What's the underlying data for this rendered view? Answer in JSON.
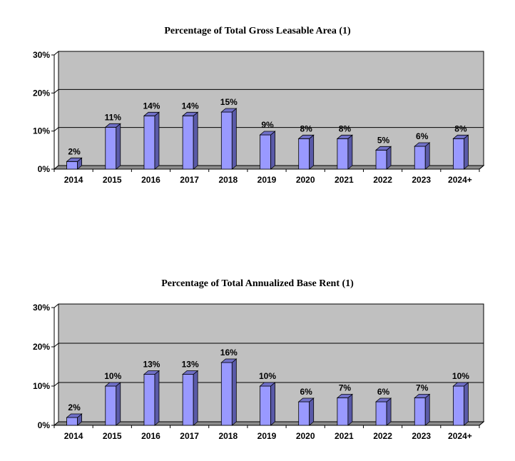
{
  "chart_data": [
    {
      "type": "bar",
      "title": "Percentage of Total Gross Leasable Area (1)",
      "categories": [
        "2014",
        "2015",
        "2016",
        "2017",
        "2018",
        "2019",
        "2020",
        "2021",
        "2022",
        "2023",
        "2024+"
      ],
      "values": [
        2,
        11,
        14,
        14,
        15,
        9,
        8,
        8,
        5,
        6,
        8
      ],
      "value_labels": [
        "2%",
        "11%",
        "14%",
        "14%",
        "15%",
        "9%",
        "8%",
        "8%",
        "5%",
        "6%",
        "8%"
      ],
      "y_ticks": [
        "0%",
        "10%",
        "20%",
        "30%"
      ],
      "ylim": [
        0,
        30
      ],
      "grid": true,
      "colors": {
        "bar_front": "#9999ff",
        "bar_side": "#5a5aa8",
        "bar_top": "#7070c8",
        "plot_bg": "#c0c0c0",
        "floor": "#8c8c8c"
      }
    },
    {
      "type": "bar",
      "title": "Percentage of Total Annualized Base Rent (1)",
      "categories": [
        "2014",
        "2015",
        "2016",
        "2017",
        "2018",
        "2019",
        "2020",
        "2021",
        "2022",
        "2023",
        "2024+"
      ],
      "values": [
        2,
        10,
        13,
        13,
        16,
        10,
        6,
        7,
        6,
        7,
        10
      ],
      "value_labels": [
        "2%",
        "10%",
        "13%",
        "13%",
        "16%",
        "10%",
        "6%",
        "7%",
        "6%",
        "7%",
        "10%"
      ],
      "y_ticks": [
        "0%",
        "10%",
        "20%",
        "30%"
      ],
      "ylim": [
        0,
        30
      ],
      "grid": true,
      "colors": {
        "bar_front": "#9999ff",
        "bar_side": "#5a5aa8",
        "bar_top": "#7070c8",
        "plot_bg": "#c0c0c0",
        "floor": "#8c8c8c"
      }
    }
  ]
}
